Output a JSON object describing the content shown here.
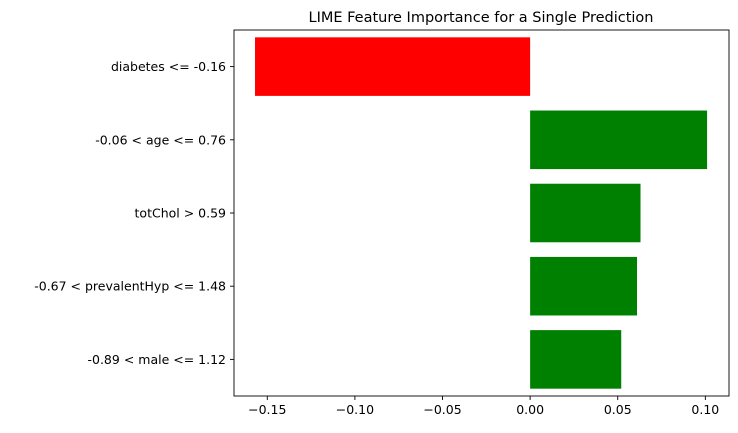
{
  "chart_data": {
    "type": "bar",
    "orientation": "horizontal",
    "title": "LIME Feature Importance for a Single Prediction",
    "xlabel": "",
    "ylabel": "",
    "categories": [
      "diabetes <= -0.16",
      "-0.06 < age <= 0.76",
      "totChol > 0.59",
      "-0.67 < prevalentHyp <= 1.48",
      "-0.89 < male <= 1.12"
    ],
    "values": [
      -0.157,
      0.101,
      0.063,
      0.061,
      0.052
    ],
    "xlim": [
      -0.169,
      0.1135
    ],
    "xticks": [
      -0.15,
      -0.1,
      -0.05,
      0.0,
      0.05,
      0.1
    ],
    "xtick_labels": [
      "−0.15",
      "−0.10",
      "−0.05",
      "0.00",
      "0.05",
      "0.10"
    ],
    "colors": {
      "negative": "#ff0000",
      "positive": "#008000"
    },
    "grid": false,
    "legend": "none"
  }
}
